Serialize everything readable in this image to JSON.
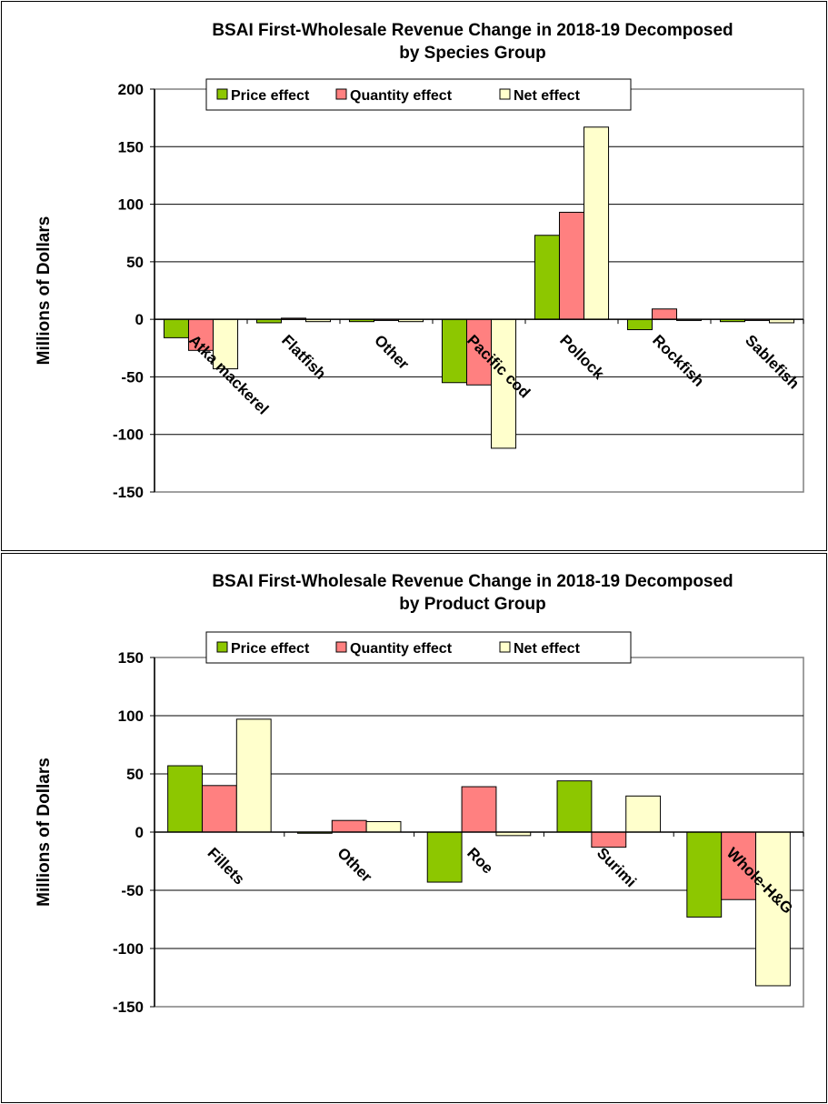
{
  "chart_data": [
    {
      "type": "bar",
      "title": [
        "BSAI First-Wholesale Revenue Change in 2018-19 Decomposed",
        "by Species Group"
      ],
      "ylabel": "Millions of Dollars",
      "ylim": [
        -150,
        200
      ],
      "yticks": [
        200,
        150,
        100,
        50,
        0,
        -50,
        -100,
        -150
      ],
      "grid": true,
      "legend_position": "top",
      "categories": [
        "Atka mackerel",
        "Flatfish",
        "Other",
        "Pacific cod",
        "Pollock",
        "Rockfish",
        "Sablefish"
      ],
      "series": [
        {
          "name": "Price effect",
          "color": "#8DC700",
          "values": [
            -16,
            -3,
            -2,
            -55,
            73,
            -9,
            -2
          ]
        },
        {
          "name": "Quantity effect",
          "color": "#FF8080",
          "values": [
            -27,
            1,
            -1,
            -57,
            93,
            9,
            -1
          ]
        },
        {
          "name": "Net effect",
          "color": "#FFFFCC",
          "values": [
            -43,
            -2,
            -2,
            -112,
            167,
            -1,
            -3
          ]
        }
      ]
    },
    {
      "type": "bar",
      "title": [
        "BSAI First-Wholesale Revenue Change in 2018-19 Decomposed",
        "by Product Group"
      ],
      "ylabel": "Millions of Dollars",
      "ylim": [
        -150,
        150
      ],
      "yticks": [
        150,
        100,
        50,
        0,
        -50,
        -100,
        -150
      ],
      "grid": true,
      "legend_position": "top",
      "categories": [
        "Fillets",
        "Other",
        "Roe",
        "Surimi",
        "Whole-H&G"
      ],
      "series": [
        {
          "name": "Price effect",
          "color": "#8DC700",
          "values": [
            57,
            -1,
            -43,
            44,
            -73
          ]
        },
        {
          "name": "Quantity effect",
          "color": "#FF8080",
          "values": [
            40,
            10,
            39,
            -13,
            -58
          ]
        },
        {
          "name": "Net effect",
          "color": "#FFFFCC",
          "values": [
            97,
            9,
            -3,
            31,
            -132
          ]
        }
      ]
    }
  ]
}
